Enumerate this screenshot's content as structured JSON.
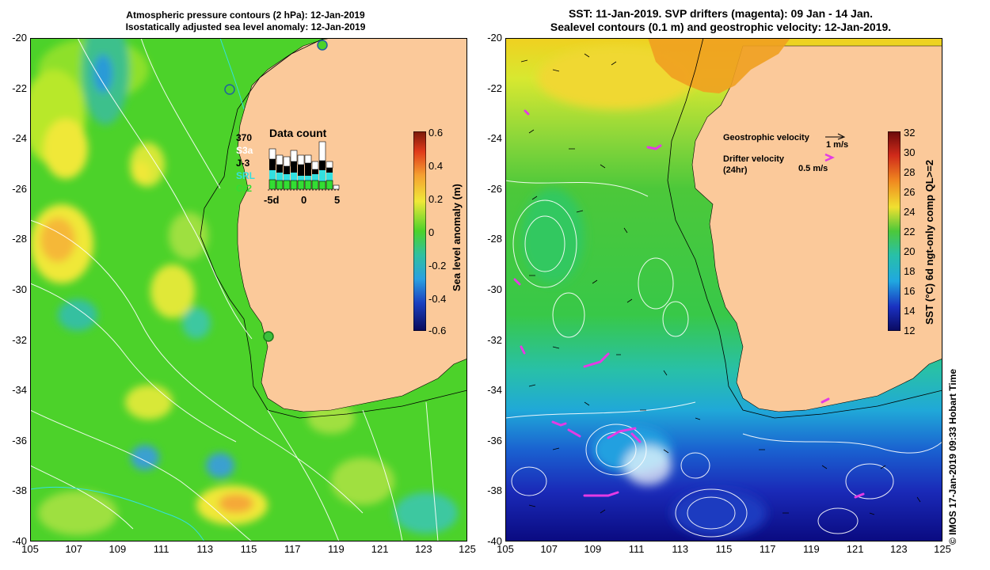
{
  "left_panel": {
    "title_line1": "Atmospheric pressure contours (2 hPa): 12-Jan-2019",
    "title_line2": "Isostatically adjusted sea level anomaly: 12-Jan-2019",
    "colorbar_label": "Sea level anomaly (m)",
    "colorbar_ticks": [
      "0.6",
      "0.4",
      "0.2",
      "0",
      "-0.2",
      "-0.4",
      "-0.6"
    ],
    "data_count": {
      "title": "Data count",
      "max_label": "370",
      "legend": [
        "S3a",
        "J-3",
        "SRL",
        "Cr2"
      ],
      "legend_colors": [
        "#ffffff",
        "#000000",
        "#33e0e0",
        "#33dd33"
      ],
      "x_ticks": [
        "-5d",
        "0",
        "5"
      ]
    }
  },
  "right_panel": {
    "title_line1": "SST: 11-Jan-2019. SVP drifters (magenta): 09 Jan - 14 Jan.",
    "title_line2": "Sealevel contours (0.1 m) and geostrophic velocity: 12-Jan-2019.",
    "colorbar_label": "SST (°C) 6d ngt-only comp QL>=2",
    "colorbar_ticks": [
      "32",
      "30",
      "28",
      "26",
      "24",
      "22",
      "20",
      "18",
      "16",
      "14",
      "12"
    ],
    "geostrophic_label": "Geostrophic velocity",
    "geostrophic_scale": "1 m/s",
    "drifter_label_line1": "Drifter velocity",
    "drifter_label_line2": "(24hr)",
    "drifter_scale": "0.5 m/s",
    "credit": "© IMOS 17-Jan-2019 09:33 Hobart Time"
  },
  "axes": {
    "lat_ticks": [
      "-20",
      "-22",
      "-24",
      "-26",
      "-28",
      "-30",
      "-32",
      "-34",
      "-36",
      "-38",
      "-40"
    ],
    "lon_ticks": [
      "105",
      "107",
      "109",
      "111",
      "113",
      "115",
      "117",
      "119",
      "121",
      "123",
      "125"
    ]
  },
  "colors": {
    "land": "#fbc99a",
    "sla_background": "#4cd22a",
    "magenta": "#e43be4"
  }
}
